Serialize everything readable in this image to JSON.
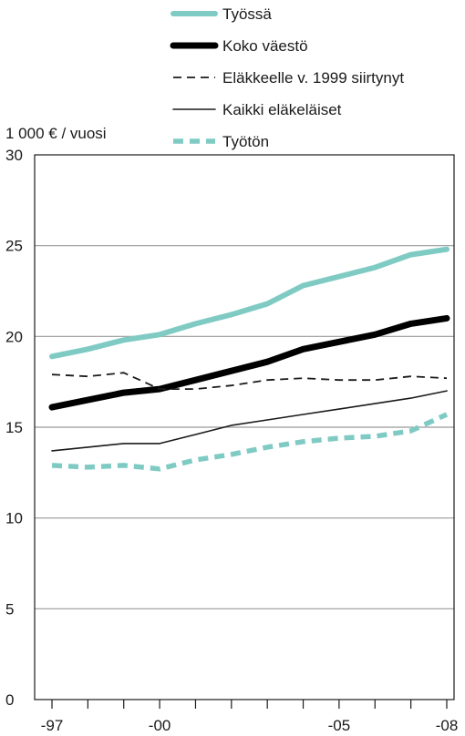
{
  "chart_data": {
    "type": "line",
    "title": "",
    "ylabel": "1 000 € / vuosi",
    "xlabel": "",
    "ylim": [
      0,
      30
    ],
    "y_ticks": [
      0,
      5,
      10,
      15,
      20,
      25,
      30
    ],
    "y_tick_labels": [
      "0",
      "5",
      "10",
      "15",
      "20",
      "25",
      "30"
    ],
    "x": [
      1997,
      1998,
      1999,
      2000,
      2001,
      2002,
      2003,
      2004,
      2005,
      2006,
      2007,
      2008
    ],
    "x_tick_labels": [
      {
        "year": 1997,
        "label": "-97"
      },
      {
        "year": 2000,
        "label": "-00"
      },
      {
        "year": 2005,
        "label": "-05"
      },
      {
        "year": 2008,
        "label": "-08"
      }
    ],
    "grid": "horizontal",
    "legend_position": "top",
    "series": [
      {
        "name": "Työssä",
        "color": "#7fcbc4",
        "style": "solid-thick",
        "values": [
          18.9,
          19.3,
          19.8,
          20.1,
          20.7,
          21.2,
          21.8,
          22.8,
          23.3,
          23.8,
          24.5,
          24.8
        ]
      },
      {
        "name": "Koko väestö",
        "color": "#000000",
        "style": "solid-thicker",
        "values": [
          16.1,
          16.5,
          16.9,
          17.1,
          17.6,
          18.1,
          18.6,
          19.3,
          19.7,
          20.1,
          20.7,
          21.0
        ]
      },
      {
        "name": "Eläkkeelle v. 1999 siirtynyt",
        "color": "#1a1a1a",
        "style": "dashed",
        "values": [
          17.9,
          17.8,
          18.0,
          17.1,
          17.1,
          17.3,
          17.6,
          17.7,
          17.6,
          17.6,
          17.8,
          17.7
        ]
      },
      {
        "name": "Kaikki eläkeläiset",
        "color": "#1a1a1a",
        "style": "solid-thin",
        "values": [
          13.7,
          13.9,
          14.1,
          14.1,
          14.6,
          15.1,
          15.4,
          15.7,
          16.0,
          16.3,
          16.6,
          17.0
        ]
      },
      {
        "name": "Työtön",
        "color": "#7fcbc4",
        "style": "dashed-thick",
        "values": [
          12.9,
          12.8,
          12.9,
          12.7,
          13.2,
          13.5,
          13.9,
          14.2,
          14.4,
          14.5,
          14.8,
          15.7
        ]
      }
    ]
  }
}
